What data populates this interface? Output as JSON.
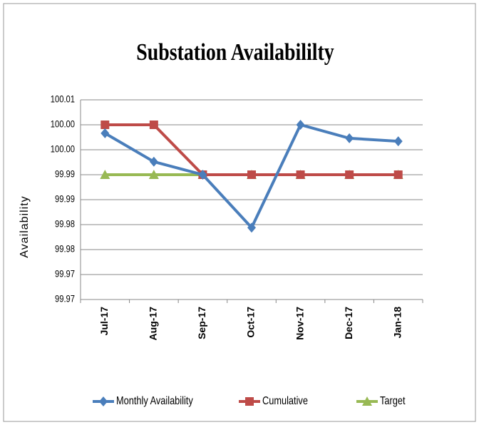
{
  "chart_data": {
    "type": "line",
    "title": "Substation Availabililty",
    "y_label": "Availability",
    "categories": [
      "Jul-17",
      "Aug-17",
      "Sep-17",
      "Oct-17",
      "Nov-17",
      "Dec-17",
      "Jan-18"
    ],
    "series": [
      {
        "name": "Monthly Availability",
        "color": "#4a7ebb",
        "marker": "diamond",
        "values": [
          100.0033,
          99.9976,
          99.995,
          99.9844,
          100.005,
          100.0023,
          100.0017
        ]
      },
      {
        "name": "Cumulative",
        "color": "#be4b48",
        "marker": "square",
        "values": [
          100.005,
          100.005,
          99.995,
          99.995,
          99.995,
          99.995,
          99.995
        ]
      },
      {
        "name": "Target",
        "color": "#98b954",
        "marker": "triangle",
        "values": [
          99.995,
          99.995,
          99.995,
          99.995,
          99.995,
          99.995,
          99.995
        ]
      }
    ],
    "ylim": [
      99.97,
      100.01
    ],
    "yticks": [
      {
        "value": 99.97,
        "label": "99.97"
      },
      {
        "value": 99.975,
        "label": "99.97"
      },
      {
        "value": 99.98,
        "label": "99.98"
      },
      {
        "value": 99.985,
        "label": "99.98"
      },
      {
        "value": 99.99,
        "label": "99.99"
      },
      {
        "value": 99.995,
        "label": "99.99"
      },
      {
        "value": 100,
        "label": "100.00"
      },
      {
        "value": 100.005,
        "label": "100.00"
      },
      {
        "value": 100.01,
        "label": "100.01"
      }
    ],
    "grid": true,
    "legend": "bottom"
  }
}
